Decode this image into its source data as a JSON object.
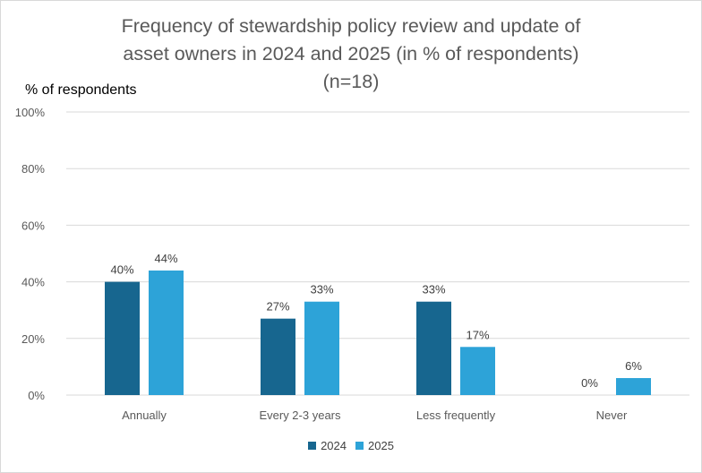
{
  "chart_data": {
    "type": "bar",
    "title_lines": [
      "Frequency of stewardship policy review and update of",
      "asset owners in 2024 and 2025 (in % of respondents)",
      "(n=18)"
    ],
    "ylabel": "% of respondents",
    "xlabel": "",
    "categories": [
      "Annually",
      "Every 2-3 years",
      "Less frequently",
      "Never"
    ],
    "series": [
      {
        "name": "2024",
        "color": "#17668F",
        "values": [
          40,
          27,
          33,
          0
        ],
        "labels": [
          "40%",
          "27%",
          "33%",
          "0%"
        ]
      },
      {
        "name": "2025",
        "color": "#2DA3D8",
        "values": [
          44,
          33,
          17,
          6
        ],
        "labels": [
          "44%",
          "33%",
          "17%",
          "6%"
        ]
      }
    ],
    "ylim": [
      0,
      100
    ],
    "yticks": [
      0,
      20,
      40,
      60,
      80,
      100
    ],
    "ytick_labels": [
      "0%",
      "20%",
      "40%",
      "60%",
      "80%",
      "100%"
    ],
    "grid": true,
    "legend_position": "bottom"
  }
}
